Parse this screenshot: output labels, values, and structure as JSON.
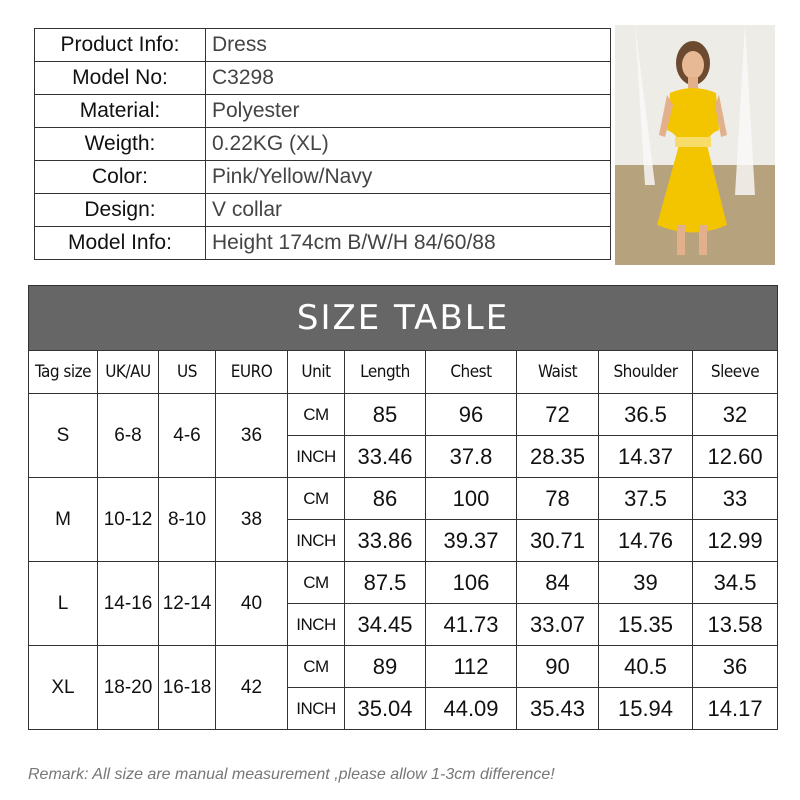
{
  "product_info": [
    {
      "label": "Product Info:",
      "value": "Dress"
    },
    {
      "label": "Model No:",
      "value": "C3298"
    },
    {
      "label": "Material:",
      "value": "Polyester"
    },
    {
      "label": "Weigth:",
      "value": "0.22KG (XL)"
    },
    {
      "label": "Color:",
      "value": "Pink/Yellow/Navy"
    },
    {
      "label": "Design:",
      "value": "V collar"
    },
    {
      "label": "Model Info:",
      "value": "Height 174cm  B/W/H 84/60/88"
    }
  ],
  "photo": {
    "subject": "model in yellow dress",
    "dress_color": "#f2c500"
  },
  "size_table": {
    "title": "SIZE TABLE",
    "header_bg": "#666666",
    "headers": [
      "Tag size",
      "UK/AU",
      "US",
      "EURO",
      "Unit",
      "Length",
      "Chest",
      "Waist",
      "Shoulder",
      "Sleeve"
    ],
    "rows": [
      {
        "tag": "S",
        "uk": "6-8",
        "us": "4-6",
        "euro": "36",
        "cm": [
          "85",
          "96",
          "72",
          "36.5",
          "32"
        ],
        "inch": [
          "33.46",
          "37.8",
          "28.35",
          "14.37",
          "12.60"
        ]
      },
      {
        "tag": "M",
        "uk": "10-12",
        "us": "8-10",
        "euro": "38",
        "cm": [
          "86",
          "100",
          "78",
          "37.5",
          "33"
        ],
        "inch": [
          "33.86",
          "39.37",
          "30.71",
          "14.76",
          "12.99"
        ]
      },
      {
        "tag": "L",
        "uk": "14-16",
        "us": "12-14",
        "euro": "40",
        "cm": [
          "87.5",
          "106",
          "84",
          "39",
          "34.5"
        ],
        "inch": [
          "34.45",
          "41.73",
          "33.07",
          "15.35",
          "13.58"
        ]
      },
      {
        "tag": "XL",
        "uk": "18-20",
        "us": "16-18",
        "euro": "42",
        "cm": [
          "89",
          "112",
          "90",
          "40.5",
          "36"
        ],
        "inch": [
          "35.04",
          "44.09",
          "35.43",
          "15.94",
          "14.17"
        ]
      }
    ],
    "unit_labels": {
      "cm": "CM",
      "inch": "INCH"
    }
  },
  "remark": "Remark: All size are manual measurement ,please allow 1-3cm difference!"
}
